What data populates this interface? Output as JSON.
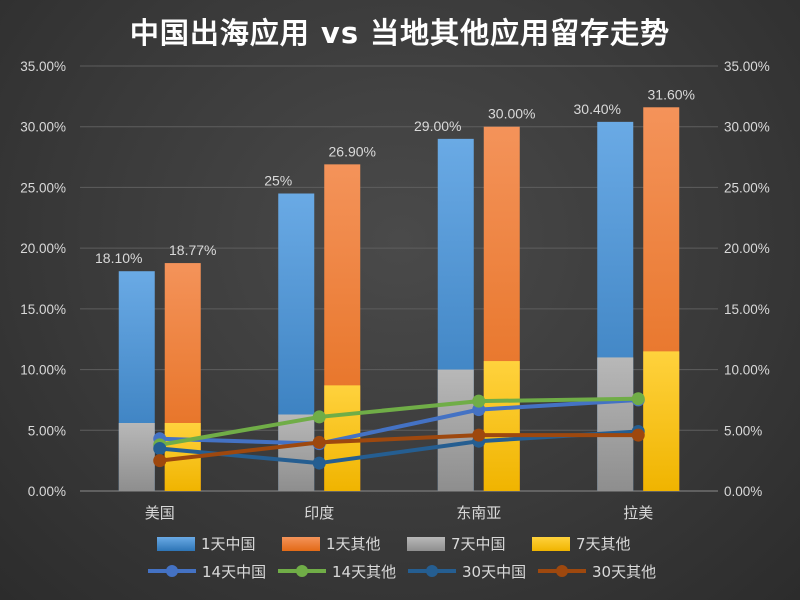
{
  "chart_data": {
    "type": "bar",
    "title": "中国出海应用 vs 当地其他应用留存走势",
    "categories": [
      "美国",
      "印度",
      "东南亚",
      "拉美"
    ],
    "ylim": [
      0,
      35
    ],
    "y_ticks": [
      "0.00%",
      "5.00%",
      "10.00%",
      "15.00%",
      "20.00%",
      "25.00%",
      "30.00%",
      "35.00%"
    ],
    "y_tick_values": [
      0,
      5,
      10,
      15,
      20,
      25,
      30,
      35
    ],
    "secondary_y_axis": true,
    "grid": true,
    "legend_position": "bottom",
    "bar_series": [
      {
        "name": "1天中国",
        "color": "#5b9bd5",
        "values": [
          18.1,
          24.5,
          29.0,
          30.4
        ],
        "labels": [
          "18.10%",
          "25%",
          "29.00%",
          "30.40%"
        ]
      },
      {
        "name": "1天其他",
        "color": "#ed7d31",
        "values": [
          18.77,
          26.9,
          30.0,
          31.6
        ],
        "labels": [
          "18.77%",
          "26.90%",
          "30.00%",
          "31.60%"
        ]
      },
      {
        "name": "7天中国",
        "color": "#a5a5a5",
        "values": [
          5.6,
          6.3,
          10.0,
          11.0
        ]
      },
      {
        "name": "7天其他",
        "color": "#ffc000",
        "values": [
          5.6,
          8.7,
          10.7,
          11.5
        ]
      }
    ],
    "line_series": [
      {
        "name": "14天中国",
        "color": "#4472c4",
        "values": [
          4.3,
          3.9,
          6.7,
          7.5
        ]
      },
      {
        "name": "14天其他",
        "color": "#70ad47",
        "values": [
          3.8,
          6.1,
          7.4,
          7.6
        ]
      },
      {
        "name": "30天中国",
        "color": "#255e91",
        "values": [
          3.5,
          2.3,
          4.1,
          4.9
        ]
      },
      {
        "name": "30天其他",
        "color": "#9e480e",
        "values": [
          2.5,
          4.0,
          4.6,
          4.6
        ]
      }
    ]
  }
}
